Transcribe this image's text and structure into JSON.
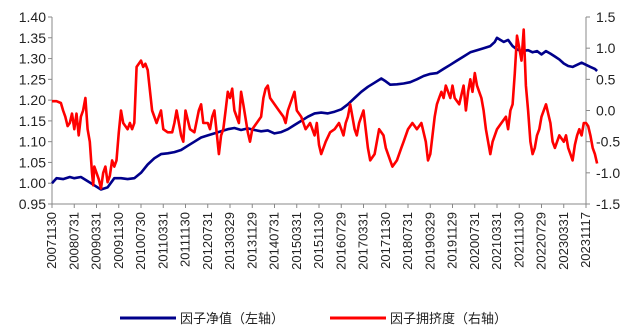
{
  "chart_data": {
    "type": "line",
    "x": [
      "20071130",
      "20080731",
      "20090331",
      "20091130",
      "20100730",
      "20110331",
      "20111130",
      "20120731",
      "20130329",
      "20131129",
      "20140731",
      "20150331",
      "20151130",
      "20160729",
      "20170331",
      "20171130",
      "20180731",
      "20190329",
      "20191129",
      "20200731",
      "20210331",
      "20211130",
      "20220729",
      "20230331",
      "20231117"
    ],
    "left_axis": {
      "ylim": [
        0.95,
        1.4
      ],
      "ticks": [
        0.95,
        1.0,
        1.05,
        1.1,
        1.15,
        1.2,
        1.25,
        1.3,
        1.35,
        1.4
      ],
      "tick_labels": [
        "0.95",
        "1.00",
        "1.05",
        "1.10",
        "1.15",
        "1.20",
        "1.25",
        "1.30",
        "1.35",
        "1.40"
      ]
    },
    "right_axis": {
      "ylim": [
        -1.5,
        1.5
      ],
      "ticks": [
        -1.5,
        -1.0,
        -0.5,
        0.0,
        0.5,
        1.0,
        1.5
      ],
      "tick_labels": [
        "-1.5",
        "-1.0",
        "-0.5",
        "0.0",
        "0.5",
        "1.0",
        "1.5"
      ]
    },
    "series": [
      {
        "name": "因子净值（左轴）",
        "axis": "left",
        "color": "#00008b",
        "points": [
          [
            0,
            1.0
          ],
          [
            0.2,
            1.012
          ],
          [
            0.5,
            1.01
          ],
          [
            0.8,
            1.015
          ],
          [
            1.0,
            1.012
          ],
          [
            1.3,
            1.015
          ],
          [
            1.6,
            1.005
          ],
          [
            1.9,
            0.995
          ],
          [
            2.2,
            0.985
          ],
          [
            2.5,
            0.99
          ],
          [
            2.8,
            1.012
          ],
          [
            3.1,
            1.012
          ],
          [
            3.4,
            1.01
          ],
          [
            3.7,
            1.012
          ],
          [
            4.0,
            1.025
          ],
          [
            4.3,
            1.045
          ],
          [
            4.6,
            1.06
          ],
          [
            4.9,
            1.07
          ],
          [
            5.2,
            1.072
          ],
          [
            5.5,
            1.075
          ],
          [
            5.8,
            1.08
          ],
          [
            6.1,
            1.09
          ],
          [
            6.4,
            1.1
          ],
          [
            6.7,
            1.11
          ],
          [
            7.0,
            1.115
          ],
          [
            7.3,
            1.12
          ],
          [
            7.6,
            1.125
          ],
          [
            7.9,
            1.13
          ],
          [
            8.2,
            1.133
          ],
          [
            8.5,
            1.128
          ],
          [
            8.8,
            1.132
          ],
          [
            9.1,
            1.128
          ],
          [
            9.4,
            1.125
          ],
          [
            9.7,
            1.127
          ],
          [
            10.0,
            1.12
          ],
          [
            10.3,
            1.123
          ],
          [
            10.6,
            1.13
          ],
          [
            10.9,
            1.14
          ],
          [
            11.2,
            1.15
          ],
          [
            11.5,
            1.16
          ],
          [
            11.8,
            1.168
          ],
          [
            12.1,
            1.17
          ],
          [
            12.4,
            1.168
          ],
          [
            12.7,
            1.172
          ],
          [
            13.0,
            1.178
          ],
          [
            13.3,
            1.19
          ],
          [
            13.6,
            1.205
          ],
          [
            13.9,
            1.22
          ],
          [
            14.2,
            1.232
          ],
          [
            14.5,
            1.242
          ],
          [
            14.8,
            1.252
          ],
          [
            15.0,
            1.245
          ],
          [
            15.2,
            1.237
          ],
          [
            15.5,
            1.238
          ],
          [
            15.8,
            1.24
          ],
          [
            16.1,
            1.243
          ],
          [
            16.4,
            1.25
          ],
          [
            16.7,
            1.258
          ],
          [
            17.0,
            1.263
          ],
          [
            17.3,
            1.265
          ],
          [
            17.6,
            1.275
          ],
          [
            17.9,
            1.285
          ],
          [
            18.2,
            1.295
          ],
          [
            18.5,
            1.305
          ],
          [
            18.8,
            1.315
          ],
          [
            19.1,
            1.32
          ],
          [
            19.4,
            1.325
          ],
          [
            19.7,
            1.33
          ],
          [
            19.9,
            1.34
          ],
          [
            20.0,
            1.35
          ],
          [
            20.15,
            1.345
          ],
          [
            20.3,
            1.34
          ],
          [
            20.5,
            1.345
          ],
          [
            20.7,
            1.33
          ],
          [
            20.9,
            1.322
          ],
          [
            21.1,
            1.318
          ],
          [
            21.4,
            1.32
          ],
          [
            21.6,
            1.315
          ],
          [
            21.8,
            1.318
          ],
          [
            22.0,
            1.31
          ],
          [
            22.2,
            1.318
          ],
          [
            22.4,
            1.312
          ],
          [
            22.6,
            1.305
          ],
          [
            22.8,
            1.298
          ],
          [
            23.0,
            1.288
          ],
          [
            23.2,
            1.282
          ],
          [
            23.4,
            1.28
          ],
          [
            23.6,
            1.285
          ],
          [
            23.8,
            1.29
          ],
          [
            24.0,
            1.285
          ],
          [
            24.2,
            1.28
          ],
          [
            24.4,
            1.275
          ],
          [
            24.5,
            1.27
          ]
        ]
      },
      {
        "name": "因子拥挤度（右轴）",
        "axis": "right",
        "color": "#ff0000",
        "points": [
          [
            0,
            0.15
          ],
          [
            0.2,
            0.15
          ],
          [
            0.4,
            0.12
          ],
          [
            0.5,
            0.0
          ],
          [
            0.6,
            -0.1
          ],
          [
            0.7,
            -0.25
          ],
          [
            0.8,
            -0.2
          ],
          [
            0.9,
            -0.05
          ],
          [
            1.0,
            -0.3
          ],
          [
            1.1,
            -0.05
          ],
          [
            1.2,
            -0.4
          ],
          [
            1.3,
            -0.1
          ],
          [
            1.4,
            0.0
          ],
          [
            1.5,
            0.2
          ],
          [
            1.6,
            -0.3
          ],
          [
            1.7,
            -0.5
          ],
          [
            1.8,
            -1.0
          ],
          [
            1.85,
            -1.2
          ],
          [
            1.9,
            -0.9
          ],
          [
            2.0,
            -1.0
          ],
          [
            2.1,
            -1.1
          ],
          [
            2.2,
            -1.25
          ],
          [
            2.3,
            -1.0
          ],
          [
            2.4,
            -0.9
          ],
          [
            2.5,
            -1.15
          ],
          [
            2.6,
            -1.05
          ],
          [
            2.7,
            -0.8
          ],
          [
            2.8,
            -0.9
          ],
          [
            2.9,
            -0.8
          ],
          [
            3.0,
            -0.35
          ],
          [
            3.1,
            0.0
          ],
          [
            3.2,
            -0.2
          ],
          [
            3.3,
            -0.25
          ],
          [
            3.4,
            -0.3
          ],
          [
            3.5,
            -0.2
          ],
          [
            3.6,
            -0.3
          ],
          [
            3.7,
            -0.2
          ],
          [
            3.8,
            0.7
          ],
          [
            3.9,
            0.75
          ],
          [
            4.0,
            0.8
          ],
          [
            4.1,
            0.7
          ],
          [
            4.2,
            0.75
          ],
          [
            4.3,
            0.65
          ],
          [
            4.5,
            0.0
          ],
          [
            4.7,
            -0.2
          ],
          [
            4.9,
            0.0
          ],
          [
            5.0,
            -0.3
          ],
          [
            5.2,
            -0.35
          ],
          [
            5.4,
            -0.35
          ],
          [
            5.5,
            -0.2
          ],
          [
            5.6,
            0.0
          ],
          [
            5.8,
            -0.4
          ],
          [
            5.9,
            -0.5
          ],
          [
            6.0,
            0.0
          ],
          [
            6.2,
            -0.3
          ],
          [
            6.4,
            -0.35
          ],
          [
            6.6,
            0.0
          ],
          [
            6.7,
            0.1
          ],
          [
            6.8,
            -0.2
          ],
          [
            7.0,
            -0.2
          ],
          [
            7.1,
            -0.3
          ],
          [
            7.2,
            -0.1
          ],
          [
            7.3,
            0.0
          ],
          [
            7.5,
            -0.7
          ],
          [
            7.6,
            -0.4
          ],
          [
            7.7,
            -0.3
          ],
          [
            7.8,
            0.0
          ],
          [
            7.9,
            0.3
          ],
          [
            8.0,
            0.2
          ],
          [
            8.1,
            0.35
          ],
          [
            8.2,
            0.0
          ],
          [
            8.4,
            -0.2
          ],
          [
            8.5,
            0.3
          ],
          [
            8.6,
            0.1
          ],
          [
            8.8,
            -0.35
          ],
          [
            8.9,
            -0.5
          ],
          [
            9.0,
            -0.3
          ],
          [
            9.2,
            -0.2
          ],
          [
            9.4,
            -0.1
          ],
          [
            9.5,
            0.2
          ],
          [
            9.6,
            0.35
          ],
          [
            9.7,
            0.4
          ],
          [
            9.8,
            0.2
          ],
          [
            10.0,
            0.1
          ],
          [
            10.2,
            0.0
          ],
          [
            10.4,
            -0.1
          ],
          [
            10.5,
            -0.2
          ],
          [
            10.6,
            0.0
          ],
          [
            10.8,
            0.2
          ],
          [
            10.9,
            0.3
          ],
          [
            11.0,
            0.0
          ],
          [
            11.2,
            -0.1
          ],
          [
            11.4,
            -0.3
          ],
          [
            11.5,
            -0.25
          ],
          [
            11.6,
            -0.2
          ],
          [
            11.8,
            -0.4
          ],
          [
            11.9,
            -0.2
          ],
          [
            12.0,
            -0.55
          ],
          [
            12.1,
            -0.7
          ],
          [
            12.3,
            -0.5
          ],
          [
            12.5,
            -0.35
          ],
          [
            12.7,
            -0.3
          ],
          [
            12.9,
            -0.2
          ],
          [
            13.0,
            -0.3
          ],
          [
            13.1,
            -0.4
          ],
          [
            13.2,
            -0.2
          ],
          [
            13.3,
            -0.1
          ],
          [
            13.4,
            0.1
          ],
          [
            13.5,
            -0.1
          ],
          [
            13.6,
            -0.3
          ],
          [
            13.7,
            -0.4
          ],
          [
            13.8,
            -0.2
          ],
          [
            13.9,
            -0.1
          ],
          [
            14.0,
            0.0
          ],
          [
            14.1,
            -0.3
          ],
          [
            14.2,
            -0.6
          ],
          [
            14.3,
            -0.8
          ],
          [
            14.5,
            -0.7
          ],
          [
            14.7,
            -0.3
          ],
          [
            14.9,
            -0.4
          ],
          [
            15.0,
            -0.6
          ],
          [
            15.2,
            -0.8
          ],
          [
            15.3,
            -0.9
          ],
          [
            15.5,
            -0.8
          ],
          [
            15.7,
            -0.6
          ],
          [
            15.8,
            -0.5
          ],
          [
            16.0,
            -0.3
          ],
          [
            16.2,
            -0.2
          ],
          [
            16.4,
            -0.3
          ],
          [
            16.6,
            -0.2
          ],
          [
            16.8,
            -0.5
          ],
          [
            16.9,
            -0.8
          ],
          [
            17.0,
            -0.7
          ],
          [
            17.2,
            -0.1
          ],
          [
            17.3,
            0.1
          ],
          [
            17.4,
            0.2
          ],
          [
            17.5,
            0.3
          ],
          [
            17.6,
            0.2
          ],
          [
            17.7,
            0.4
          ],
          [
            17.8,
            0.3
          ],
          [
            17.9,
            0.2
          ],
          [
            18.0,
            0.4
          ],
          [
            18.1,
            0.2
          ],
          [
            18.3,
            0.1
          ],
          [
            18.5,
            0.4
          ],
          [
            18.6,
            0.0
          ],
          [
            18.7,
            0.3
          ],
          [
            18.8,
            0.5
          ],
          [
            18.9,
            0.3
          ],
          [
            19.0,
            0.6
          ],
          [
            19.1,
            0.4
          ],
          [
            19.2,
            0.3
          ],
          [
            19.3,
            0.2
          ],
          [
            19.4,
            0.0
          ],
          [
            19.5,
            -0.3
          ],
          [
            19.6,
            -0.5
          ],
          [
            19.7,
            -0.7
          ],
          [
            19.8,
            -0.5
          ],
          [
            20.0,
            -0.3
          ],
          [
            20.2,
            -0.2
          ],
          [
            20.4,
            -0.1
          ],
          [
            20.5,
            -0.3
          ],
          [
            20.6,
            0.0
          ],
          [
            20.7,
            0.1
          ],
          [
            20.8,
            0.6
          ],
          [
            20.9,
            1.2
          ],
          [
            21.0,
            1.0
          ],
          [
            21.1,
            0.8
          ],
          [
            21.2,
            1.3
          ],
          [
            21.3,
            0.4
          ],
          [
            21.4,
            0.0
          ],
          [
            21.5,
            -0.5
          ],
          [
            21.6,
            -0.7
          ],
          [
            21.7,
            -0.6
          ],
          [
            21.8,
            -0.4
          ],
          [
            21.9,
            -0.3
          ],
          [
            22.0,
            -0.1
          ],
          [
            22.2,
            0.1
          ],
          [
            22.4,
            -0.2
          ],
          [
            22.5,
            -0.5
          ],
          [
            22.6,
            -0.6
          ],
          [
            22.8,
            -0.4
          ],
          [
            23.0,
            -0.5
          ],
          [
            23.1,
            -0.4
          ],
          [
            23.2,
            -0.6
          ],
          [
            23.3,
            -0.7
          ],
          [
            23.4,
            -0.8
          ],
          [
            23.5,
            -0.55
          ],
          [
            23.6,
            -0.4
          ],
          [
            23.7,
            -0.3
          ],
          [
            23.8,
            -0.4
          ],
          [
            23.9,
            -0.2
          ],
          [
            24.0,
            -0.2
          ],
          [
            24.1,
            -0.25
          ],
          [
            24.2,
            -0.4
          ],
          [
            24.3,
            -0.6
          ],
          [
            24.4,
            -0.7
          ],
          [
            24.5,
            -0.85
          ]
        ]
      }
    ],
    "legend": {
      "position": "bottom",
      "entries": [
        "因子净值（左轴）",
        "因子拥挤度（右轴）"
      ]
    }
  }
}
